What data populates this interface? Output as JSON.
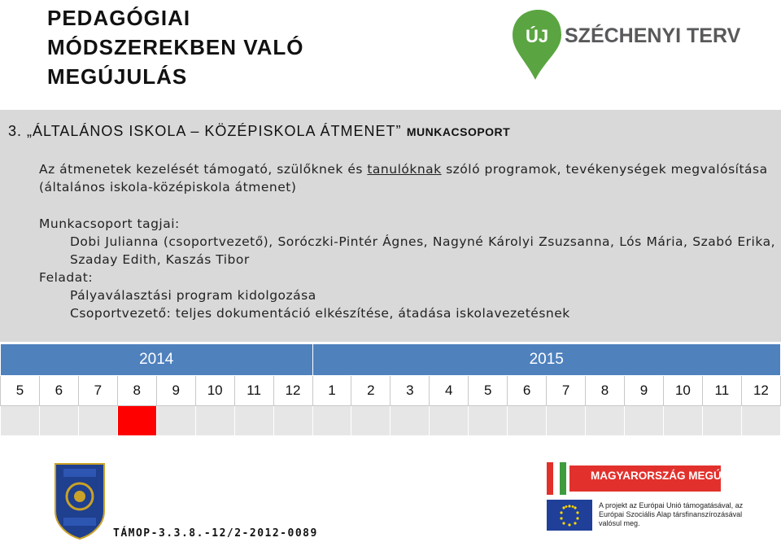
{
  "title": "PEDAGÓGIAI\nMÓDSZEREKBEN VALÓ\nMEGÚJULÁS",
  "logo_top": {
    "badge": "ÚJ",
    "word": "SZÉCHENYI TERV",
    "color": "#5aa541"
  },
  "heading": {
    "main": "3. „ÁLTALÁNOS ISKOLA – KÖZÉPISKOLA ÁTMENET”",
    "sub": "MUNKACSOPORT"
  },
  "intro": {
    "before": "Az átmenetek kezelését támogató, szülőknek és ",
    "underlined": "tanulóknak",
    "after": " szóló programok, tevékenységek megvalósítása (általános iskola-középiskola átmenet)"
  },
  "members": {
    "label": "Munkacsoport tagjai:",
    "names": "Dobi Julianna (csoportvezető), Soróczki-Pintér Ágnes, Nagyné Károlyi Zsuzsanna, Lós Mária, Szabó Erika, Szaday Edith, Kaszás Tibor"
  },
  "task": {
    "label": "Feladat:",
    "line1": "Pályaválasztási program kidolgozása",
    "line2": "Csoportvezető: teljes dokumentáció elkészítése, átadása iskolavezetésnek"
  },
  "schedule": {
    "years": [
      "2014",
      "2015"
    ],
    "months": [
      "5",
      "6",
      "7",
      "8",
      "9",
      "10",
      "11",
      "12",
      "1",
      "2",
      "3",
      "4",
      "5",
      "6",
      "7",
      "8",
      "9",
      "10",
      "11",
      "12"
    ],
    "active_month_index": 3,
    "active_color": "#ff0000",
    "header_color": "#4f81bd"
  },
  "footer": {
    "code": "TÁMOP-3.3.8.-12/2-2012-0089",
    "school_logo_text": "VERES PÉTER GIMNÁZIUM SZAKKÖZÉPISKOLA ÉS SZAKISKOLA",
    "school_logo_city": "BALMAZÚJVÁROS",
    "school_logo_years": "1834 • 1964 • 1995",
    "mm_label": "MAGYARORSZÁG MEGÚJUL",
    "eu_text": "A projekt az Európai Unió támogatásával, az Európai Szociális Alap társfinanszírozásával valósul meg."
  }
}
